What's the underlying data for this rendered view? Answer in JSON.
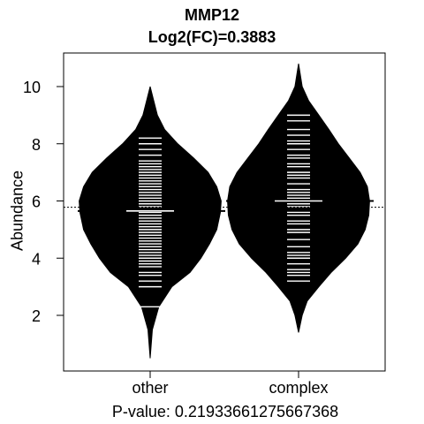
{
  "chart_data": {
    "type": "beanplot",
    "title": "MMP12",
    "subtitle": "Log2(FC)=0.3883",
    "ylabel": "Abundance",
    "xlabel": "P-value: 0.21933661275667368",
    "categories": [
      "other",
      "complex"
    ],
    "ylim": [
      0.5,
      11
    ],
    "yticks": [
      2,
      4,
      6,
      8,
      10
    ],
    "overall_mean": 5.78,
    "groups": [
      {
        "name": "other",
        "mean": 5.65,
        "range": [
          0.5,
          10.0
        ],
        "density": [
          [
            0.5,
            0.0
          ],
          [
            1.5,
            0.03
          ],
          [
            2.3,
            0.12
          ],
          [
            3.0,
            0.3
          ],
          [
            3.5,
            0.55
          ],
          [
            4.0,
            0.7
          ],
          [
            4.5,
            0.82
          ],
          [
            5.0,
            0.92
          ],
          [
            5.6,
            0.97
          ],
          [
            6.0,
            0.98
          ],
          [
            6.5,
            0.92
          ],
          [
            7.0,
            0.8
          ],
          [
            7.5,
            0.6
          ],
          [
            8.0,
            0.38
          ],
          [
            8.5,
            0.2
          ],
          [
            9.0,
            0.1
          ],
          [
            9.5,
            0.05
          ],
          [
            10.0,
            0.0
          ]
        ],
        "points": [
          2.3,
          3.0,
          3.2,
          3.4,
          3.5,
          3.7,
          3.8,
          3.9,
          4.0,
          4.1,
          4.2,
          4.3,
          4.4,
          4.5,
          4.6,
          4.7,
          4.8,
          4.9,
          5.0,
          5.1,
          5.2,
          5.3,
          5.4,
          5.5,
          5.6,
          5.65,
          5.8,
          5.9,
          6.0,
          6.1,
          6.2,
          6.3,
          6.4,
          6.5,
          6.6,
          6.7,
          6.8,
          6.9,
          7.0,
          7.1,
          7.2,
          7.3,
          7.4,
          7.6,
          7.8,
          8.0,
          8.2
        ]
      },
      {
        "name": "complex",
        "mean": 6.0,
        "range": [
          1.4,
          10.8
        ],
        "density": [
          [
            1.4,
            0.0
          ],
          [
            2.0,
            0.05
          ],
          [
            2.5,
            0.12
          ],
          [
            3.0,
            0.28
          ],
          [
            3.5,
            0.45
          ],
          [
            4.0,
            0.65
          ],
          [
            4.5,
            0.82
          ],
          [
            5.0,
            0.92
          ],
          [
            5.5,
            0.97
          ],
          [
            6.0,
            0.98
          ],
          [
            6.5,
            0.95
          ],
          [
            7.0,
            0.85
          ],
          [
            7.5,
            0.7
          ],
          [
            8.0,
            0.55
          ],
          [
            8.5,
            0.42
          ],
          [
            9.0,
            0.28
          ],
          [
            9.5,
            0.14
          ],
          [
            10.0,
            0.05
          ],
          [
            10.8,
            0.0
          ]
        ],
        "points": [
          3.2,
          3.4,
          3.5,
          3.6,
          3.8,
          4.0,
          4.1,
          4.2,
          4.4,
          4.65,
          4.9,
          5.0,
          5.2,
          5.3,
          5.5,
          5.6,
          5.8,
          5.9,
          6.0,
          6.1,
          6.2,
          6.3,
          6.4,
          6.6,
          6.8,
          6.9,
          7.0,
          7.2,
          7.3,
          7.5,
          7.6,
          7.8,
          8.0,
          8.1,
          8.3,
          8.5,
          8.8,
          9.0
        ]
      }
    ]
  }
}
